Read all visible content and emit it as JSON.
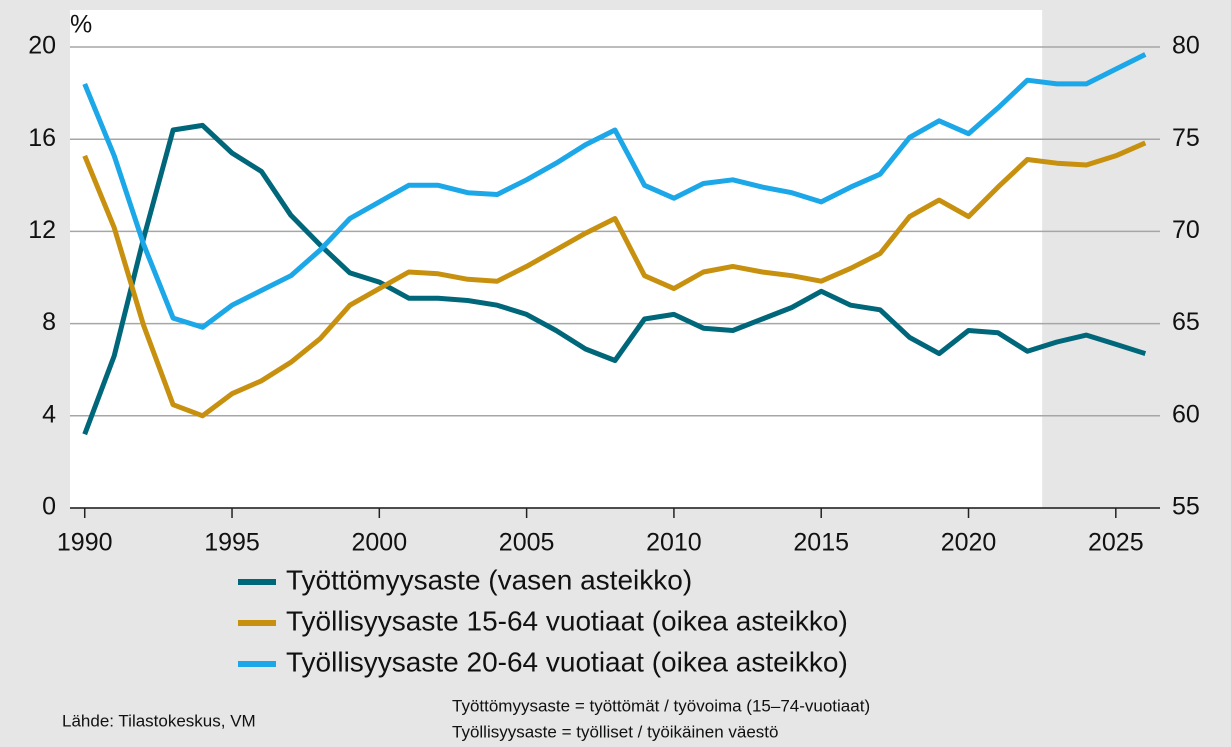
{
  "chart_data": {
    "type": "line",
    "y_label": "%",
    "source": "Lähde: Tilastokeskus, VM",
    "notes": [
      "Työttömyysaste  = työttömät  / työvoima  (15–74-vuotiaat)",
      "Työllisyysaste  = työlliset  / työikäinen  väestö"
    ],
    "x": [
      1990,
      1991,
      1992,
      1993,
      1994,
      1995,
      1996,
      1997,
      1998,
      1999,
      2000,
      2001,
      2002,
      2003,
      2004,
      2005,
      2006,
      2007,
      2008,
      2009,
      2010,
      2011,
      2012,
      2013,
      2014,
      2015,
      2016,
      2017,
      2018,
      2019,
      2020,
      2021,
      2022,
      2023,
      2024,
      2025,
      2026
    ],
    "xlim": [
      1989.5,
      2026.5
    ],
    "xticks": [
      1990,
      1995,
      2000,
      2005,
      2010,
      2015,
      2020,
      2025
    ],
    "ylim": [
      0,
      20
    ],
    "yticks": [
      0,
      4,
      8,
      12,
      16,
      20
    ],
    "y2lim": [
      55,
      80
    ],
    "y2ticks": [
      55,
      60,
      65,
      70,
      75,
      80
    ],
    "grid": true,
    "shaded_from": 2022.5,
    "series": [
      {
        "name": "Työttömyysaste (vasen asteikko)",
        "color": "#00677a",
        "axis": "y",
        "values": [
          3.2,
          6.6,
          11.7,
          16.4,
          16.6,
          15.4,
          14.6,
          12.7,
          11.4,
          10.2,
          9.8,
          9.1,
          9.1,
          9.0,
          8.8,
          8.4,
          7.7,
          6.9,
          6.4,
          8.2,
          8.4,
          7.8,
          7.7,
          8.2,
          8.7,
          9.4,
          8.8,
          8.6,
          7.4,
          6.7,
          7.7,
          7.6,
          6.8,
          7.2,
          7.5,
          7.1,
          6.7
        ]
      },
      {
        "name": "Työllisyysaste 15-64 vuotiaat (oikea asteikko)",
        "color": "#c8900f",
        "axis": "y2",
        "values": [
          74.1,
          70.2,
          64.9,
          60.6,
          60.0,
          61.2,
          61.9,
          62.9,
          64.2,
          66.0,
          66.9,
          67.8,
          67.7,
          67.4,
          67.3,
          68.1,
          69.0,
          69.9,
          70.7,
          67.6,
          66.9,
          67.8,
          68.1,
          67.8,
          67.6,
          67.3,
          68.0,
          68.8,
          70.8,
          71.7,
          70.8,
          72.4,
          73.9,
          73.7,
          73.6,
          74.1,
          74.8
        ]
      },
      {
        "name": "Työllisyysaste 20-64 vuotiaat (oikea asteikko)",
        "color": "#1ba7e8",
        "axis": "y2",
        "values": [
          78.0,
          74.1,
          69.3,
          65.3,
          64.8,
          66.0,
          66.8,
          67.6,
          69.0,
          70.7,
          71.6,
          72.5,
          72.5,
          72.1,
          72.0,
          72.8,
          73.7,
          74.7,
          75.5,
          72.5,
          71.8,
          72.6,
          72.8,
          72.4,
          72.1,
          71.6,
          72.4,
          73.1,
          75.1,
          76.0,
          75.3,
          76.7,
          78.2,
          78.0,
          78.0,
          78.8,
          79.6
        ]
      }
    ]
  }
}
